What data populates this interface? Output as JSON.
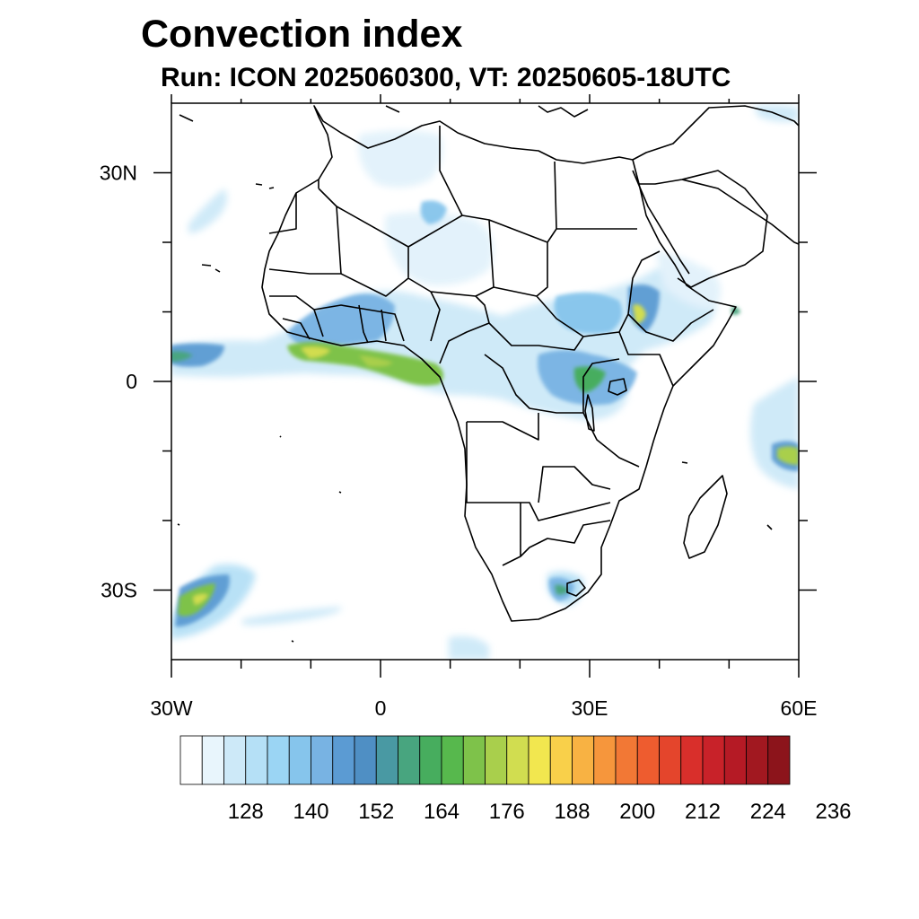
{
  "title": "Convection index",
  "subtitle": "Run: ICON 2025060300,  VT: 20250605-18UTC",
  "map": {
    "projection": "cylindrical-equidistant",
    "lon_range": [
      -30,
      60
    ],
    "lat_range": [
      -40,
      40
    ],
    "x_ticks": [
      {
        "lon": -30,
        "label": "30W"
      },
      {
        "lon": 0,
        "label": "0"
      },
      {
        "lon": 30,
        "label": "30E"
      },
      {
        "lon": 60,
        "label": "60E"
      }
    ],
    "y_ticks": [
      {
        "lat": 30,
        "label": "30N"
      },
      {
        "lat": 0,
        "label": "0"
      },
      {
        "lat": -30,
        "label": "30S"
      }
    ],
    "minor_x_ticks": [
      -20,
      -10,
      10,
      20,
      40,
      50
    ],
    "minor_y_ticks": [
      20,
      10,
      -10,
      -20
    ],
    "land_color": "#ffffff",
    "ocean_color": "#ffffff",
    "boundary_color": "#000000"
  },
  "colorbar": {
    "colors": [
      "#ffffff",
      "#e8f5fc",
      "#cde9f8",
      "#b5e0f6",
      "#9bd5f4",
      "#86c5ec",
      "#78b3e3",
      "#5b9bd3",
      "#4f8fc4",
      "#4999a3",
      "#48a57f",
      "#47ad5e",
      "#57b84d",
      "#7ec24a",
      "#a9cf4c",
      "#d1dd50",
      "#f2e74f",
      "#f9d04a",
      "#f8b243",
      "#f6963c",
      "#f27835",
      "#ee5c2f",
      "#e4452c",
      "#d92f2b",
      "#c82229",
      "#b51a25",
      "#a11820",
      "#8c141b"
    ],
    "labels": [
      "128",
      "140",
      "152",
      "164",
      "176",
      "188",
      "200",
      "212",
      "224",
      "236"
    ],
    "label_start_index": 2,
    "label_step": 3
  }
}
